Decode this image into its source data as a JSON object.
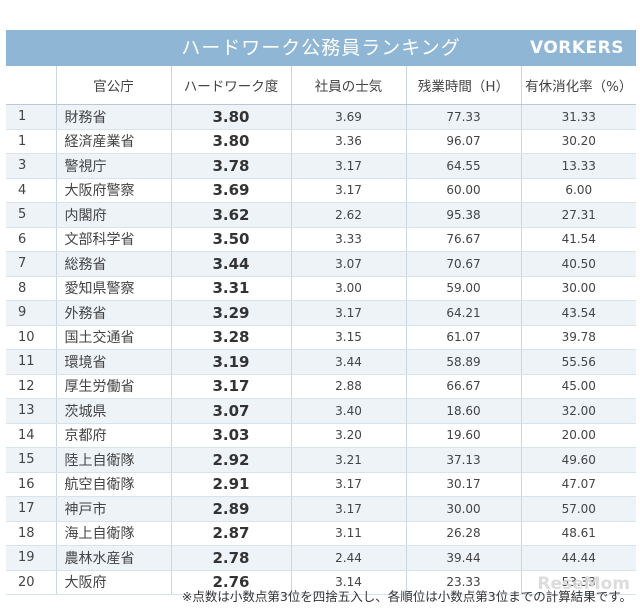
{
  "header": {
    "title": "ハードワーク公務員ランキング",
    "brand": "VORKERS"
  },
  "columns": [
    "",
    "官公庁",
    "ハードワーク度",
    "社員の士気",
    "残業時間（H）",
    "有休消化率（%）"
  ],
  "rows": [
    {
      "rank": "1",
      "office": "財務省",
      "hardwork": "3.80",
      "morale": "3.69",
      "overtime": "77.33",
      "leave": "31.33"
    },
    {
      "rank": "1",
      "office": "経済産業省",
      "hardwork": "3.80",
      "morale": "3.36",
      "overtime": "96.07",
      "leave": "30.20"
    },
    {
      "rank": "3",
      "office": "警視庁",
      "hardwork": "3.78",
      "morale": "3.17",
      "overtime": "64.55",
      "leave": "13.33"
    },
    {
      "rank": "4",
      "office": "大阪府警察",
      "hardwork": "3.69",
      "morale": "3.17",
      "overtime": "60.00",
      "leave": "6.00"
    },
    {
      "rank": "5",
      "office": "内閣府",
      "hardwork": "3.62",
      "morale": "2.62",
      "overtime": "95.38",
      "leave": "27.31"
    },
    {
      "rank": "6",
      "office": "文部科学省",
      "hardwork": "3.50",
      "morale": "3.33",
      "overtime": "76.67",
      "leave": "41.54"
    },
    {
      "rank": "7",
      "office": "総務省",
      "hardwork": "3.44",
      "morale": "3.07",
      "overtime": "70.67",
      "leave": "40.50"
    },
    {
      "rank": "8",
      "office": "愛知県警察",
      "hardwork": "3.31",
      "morale": "3.00",
      "overtime": "59.00",
      "leave": "30.00"
    },
    {
      "rank": "9",
      "office": "外務省",
      "hardwork": "3.29",
      "morale": "3.17",
      "overtime": "64.21",
      "leave": "43.54"
    },
    {
      "rank": "10",
      "office": "国土交通省",
      "hardwork": "3.28",
      "morale": "3.15",
      "overtime": "61.07",
      "leave": "39.78"
    },
    {
      "rank": "11",
      "office": "環境省",
      "hardwork": "3.19",
      "morale": "3.44",
      "overtime": "58.89",
      "leave": "55.56"
    },
    {
      "rank": "12",
      "office": "厚生労働省",
      "hardwork": "3.17",
      "morale": "2.88",
      "overtime": "66.67",
      "leave": "45.00"
    },
    {
      "rank": "13",
      "office": "茨城県",
      "hardwork": "3.07",
      "morale": "3.40",
      "overtime": "18.60",
      "leave": "32.00"
    },
    {
      "rank": "14",
      "office": "京都府",
      "hardwork": "3.03",
      "morale": "3.20",
      "overtime": "19.60",
      "leave": "20.00"
    },
    {
      "rank": "15",
      "office": "陸上自衛隊",
      "hardwork": "2.92",
      "morale": "3.21",
      "overtime": "37.13",
      "leave": "49.60"
    },
    {
      "rank": "16",
      "office": "航空自衛隊",
      "hardwork": "2.91",
      "morale": "3.17",
      "overtime": "30.17",
      "leave": "47.07"
    },
    {
      "rank": "17",
      "office": "神戸市",
      "hardwork": "2.89",
      "morale": "3.17",
      "overtime": "30.00",
      "leave": "57.00"
    },
    {
      "rank": "18",
      "office": "海上自衛隊",
      "hardwork": "2.87",
      "morale": "3.11",
      "overtime": "26.28",
      "leave": "48.61"
    },
    {
      "rank": "19",
      "office": "農林水産省",
      "hardwork": "2.78",
      "morale": "2.44",
      "overtime": "39.44",
      "leave": "44.44"
    },
    {
      "rank": "20",
      "office": "大阪府",
      "hardwork": "2.76",
      "morale": "3.14",
      "overtime": "23.33",
      "leave": "53.33"
    }
  ],
  "footnote": "※点数は小数点第3位を四捨五入し、各順位は小数点第3位までの計算結果です。",
  "logo": "ReseMom"
}
